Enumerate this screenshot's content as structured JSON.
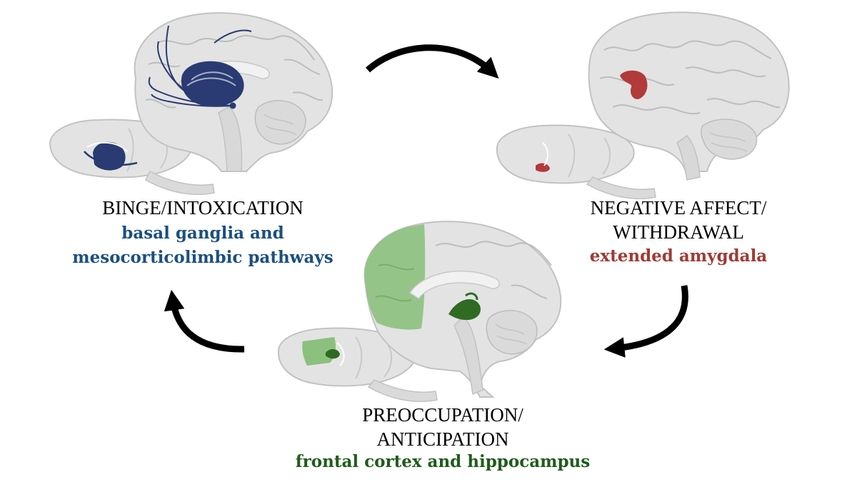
{
  "stages": [
    {
      "id": "binge",
      "title_lines": [
        "BINGE/INTOXICATION"
      ],
      "subtitle_lines": [
        "basal ganglia and",
        "mesocorticolimbic pathways"
      ],
      "color": "#1b4f80",
      "highlight_color": "#2a3a72"
    },
    {
      "id": "withdrawal",
      "title_lines": [
        "NEGATIVE AFFECT/",
        "WITHDRAWAL"
      ],
      "subtitle_lines": [
        "extended amygdala"
      ],
      "color": "#a03a35",
      "highlight_color": "#b23a3a"
    },
    {
      "id": "anticipation",
      "title_lines": [
        "PREOCCUPATION/",
        "ANTICIPATION"
      ],
      "subtitle_lines": [
        "frontal cortex and hippocampus"
      ],
      "color": "#1f5c1a",
      "highlight_color": "#8cc07e",
      "highlight_dark": "#2f6b22"
    }
  ],
  "arrows": [
    "binge-to-withdrawal",
    "withdrawal-to-anticipation",
    "anticipation-to-binge"
  ],
  "colors": {
    "brain_fill": "#e3e3e3",
    "brain_stroke": "#c2c2c2",
    "brain_fold": "#bdbdbd",
    "arrow": "#000000"
  }
}
